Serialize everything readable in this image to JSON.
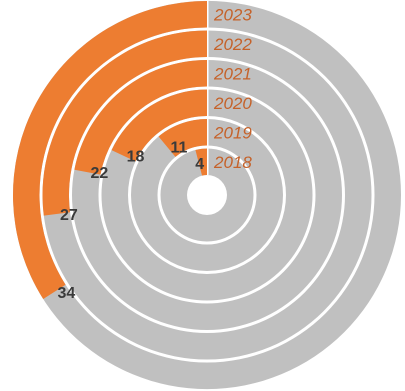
{
  "chart_data": {
    "type": "radial-bar",
    "title": "",
    "max": 100,
    "categories": [
      "2018",
      "2019",
      "2020",
      "2021",
      "2022",
      "2023"
    ],
    "values": [
      4,
      11,
      18,
      22,
      27,
      34
    ],
    "colors": {
      "value": "#ED7D31",
      "remainder": "#C0C0C0",
      "year_label": "#C5622A",
      "value_label": "#3A3A3A"
    }
  }
}
